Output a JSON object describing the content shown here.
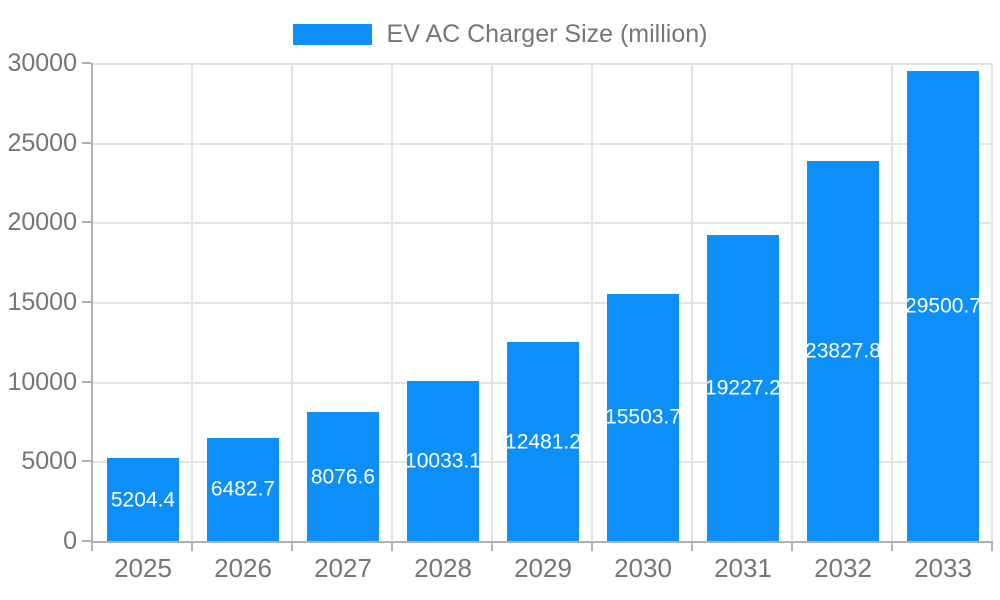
{
  "legend": {
    "label": "EV AC Charger Size (million)"
  },
  "colors": {
    "bar": "#0d8ff9",
    "grid": "#e4e4e4",
    "axis": "#b0b0b0",
    "tick_label": "#757575",
    "bar_label": "#ffffff",
    "background": "#ffffff"
  },
  "chart_data": {
    "type": "bar",
    "title": "EV AC Charger Size (million)",
    "categories": [
      "2025",
      "2026",
      "2027",
      "2028",
      "2029",
      "2030",
      "2031",
      "2032",
      "2033"
    ],
    "series": [
      {
        "name": "EV AC Charger Size (million)",
        "values": [
          5204.4,
          6482.7,
          8076.6,
          10033.1,
          12481.2,
          15503.7,
          19227.2,
          23827.8,
          29500.7
        ]
      }
    ],
    "bar_labels": [
      "5204.4",
      "6482.7",
      "8076.6",
      "10033.1",
      "12481.2",
      "15503.7",
      "19227.2",
      "23827.8",
      "29500.7"
    ],
    "xlabel": "",
    "ylabel": "",
    "ylim": [
      0,
      30000
    ],
    "yticks": [
      0,
      5000,
      10000,
      15000,
      20000,
      25000,
      30000
    ],
    "ytick_labels": [
      "0",
      "5000",
      "10000",
      "15000",
      "20000",
      "25000",
      "30000"
    ],
    "grid": true,
    "legend_position": "top-center",
    "bar_label_position": "center-inside",
    "value_label_decimals": 1
  }
}
